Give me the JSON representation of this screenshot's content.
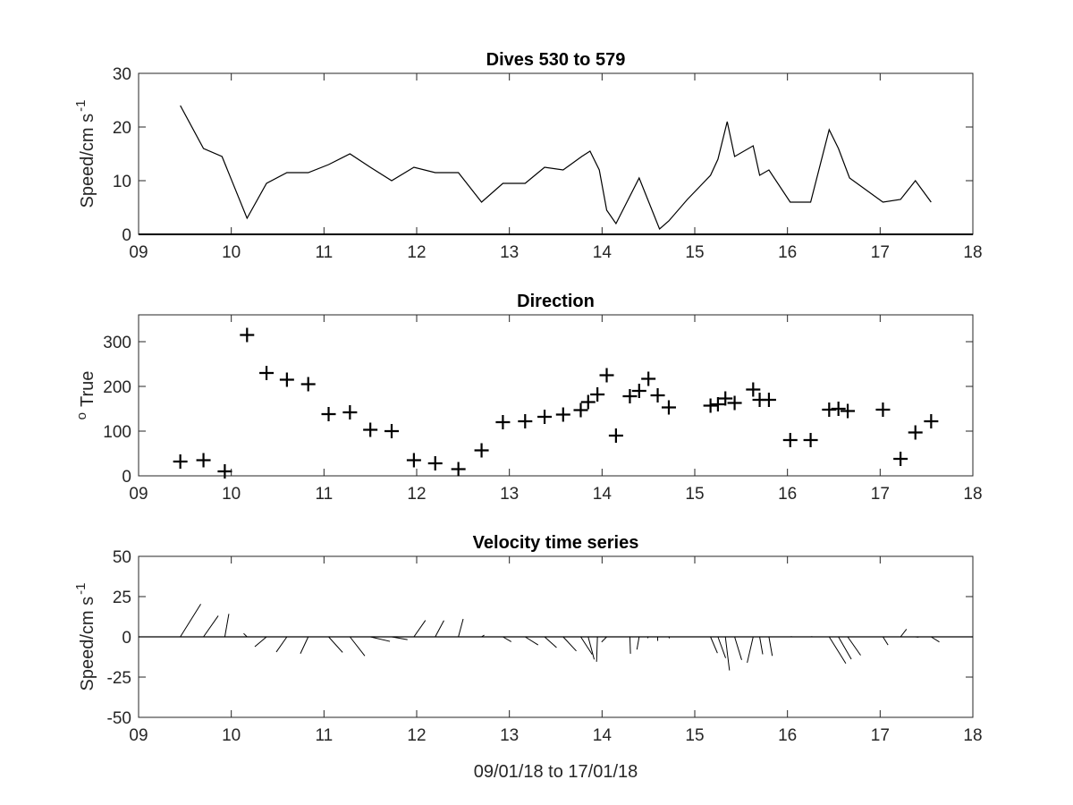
{
  "chart_data": [
    {
      "type": "line",
      "title": "Dives 530 to 579",
      "xlabel": "",
      "ylabel": "Speed/cm s",
      "ylabel_superscript": "-1",
      "xlim": [
        9,
        18
      ],
      "ylim": [
        0,
        30
      ],
      "xticks": [
        9,
        10,
        11,
        12,
        13,
        14,
        15,
        16,
        17,
        18
      ],
      "xtick_labels": [
        "09",
        "10",
        "11",
        "12",
        "13",
        "14",
        "15",
        "16",
        "17",
        "18"
      ],
      "yticks": [
        0,
        10,
        20,
        30
      ],
      "ytick_labels": [
        "0",
        "10",
        "20",
        "30"
      ],
      "grid": false,
      "series": [
        {
          "x": [
            9.45,
            9.7,
            9.9,
            10.17,
            10.38,
            10.6,
            10.83,
            11.05,
            11.28,
            11.5,
            11.73,
            11.97,
            12.2,
            12.45,
            12.7,
            12.93,
            13.17,
            13.38,
            13.58,
            13.78,
            13.87,
            13.97,
            14.05,
            14.15,
            14.4,
            14.62,
            14.72,
            14.92,
            15.17,
            15.25,
            15.35,
            15.43,
            15.63,
            15.7,
            15.8,
            16.03,
            16.25,
            16.45,
            16.55,
            16.67,
            17.03,
            17.22,
            17.38,
            17.55
          ],
          "y": [
            24,
            16,
            14.5,
            3,
            9.5,
            11.5,
            11.5,
            13,
            15,
            12.5,
            10,
            12.5,
            11.5,
            11.5,
            6,
            9.5,
            9.5,
            12.5,
            12,
            14.5,
            15.5,
            12,
            4.5,
            2,
            10.5,
            1,
            2.5,
            6.5,
            11,
            14,
            21,
            14.5,
            16.5,
            11,
            12,
            6,
            6,
            19.5,
            16,
            10.5,
            6,
            6.5,
            10,
            6
          ]
        }
      ]
    },
    {
      "type": "scatter",
      "title": "Direction",
      "xlabel": "",
      "ylabel": "True",
      "ylabel_superscript": "o",
      "xlim": [
        9,
        18
      ],
      "ylim": [
        0,
        360
      ],
      "xticks": [
        9,
        10,
        11,
        12,
        13,
        14,
        15,
        16,
        17,
        18
      ],
      "xtick_labels": [
        "09",
        "10",
        "11",
        "12",
        "13",
        "14",
        "15",
        "16",
        "17",
        "18"
      ],
      "yticks": [
        0,
        100,
        200,
        300
      ],
      "ytick_labels": [
        "0",
        "100",
        "200",
        "300"
      ],
      "grid": false,
      "series": [
        {
          "x": [
            9.45,
            9.7,
            9.93,
            10.17,
            10.38,
            10.6,
            10.83,
            11.05,
            11.28,
            11.5,
            11.73,
            11.97,
            12.2,
            12.45,
            12.7,
            12.93,
            13.17,
            13.38,
            13.58,
            13.77,
            13.85,
            13.95,
            14.05,
            14.15,
            14.3,
            14.4,
            14.5,
            14.6,
            14.72,
            15.17,
            15.25,
            15.33,
            15.43,
            15.63,
            15.7,
            15.8,
            16.03,
            16.25,
            16.45,
            16.55,
            16.65,
            17.03,
            17.22,
            17.38,
            17.55
          ],
          "y": [
            32,
            35,
            10,
            315,
            230,
            215,
            205,
            138,
            142,
            103,
            100,
            35,
            28,
            15,
            57,
            120,
            122,
            132,
            137,
            147,
            165,
            182,
            225,
            90,
            178,
            190,
            217,
            180,
            153,
            157,
            160,
            173,
            163,
            193,
            170,
            170,
            80,
            80,
            148,
            150,
            145,
            148,
            38,
            97,
            122
          ]
        }
      ]
    },
    {
      "type": "quiver",
      "title": "Velocity time series",
      "xlabel": "09/01/18 to 17/01/18",
      "ylabel": "Speed/cm s",
      "ylabel_superscript": "-1",
      "xlim": [
        9,
        18
      ],
      "ylim": [
        -50,
        50
      ],
      "xticks": [
        9,
        10,
        11,
        12,
        13,
        14,
        15,
        16,
        17,
        18
      ],
      "xtick_labels": [
        "09",
        "10",
        "11",
        "12",
        "13",
        "14",
        "15",
        "16",
        "17",
        "18"
      ],
      "yticks": [
        -50,
        -25,
        0,
        25,
        50
      ],
      "ytick_labels": [
        "-50",
        "-25",
        "0",
        "25",
        "50"
      ],
      "grid": false,
      "series": [
        {
          "x": [
            9.45,
            9.7,
            9.93,
            10.17,
            10.38,
            10.6,
            10.83,
            11.05,
            11.28,
            11.5,
            11.73,
            11.97,
            12.2,
            12.45,
            12.7,
            12.93,
            13.17,
            13.38,
            13.58,
            13.77,
            13.85,
            13.95,
            14.05,
            14.15,
            14.3,
            14.4,
            14.5,
            14.6,
            14.72,
            15.17,
            15.25,
            15.33,
            15.43,
            15.63,
            15.7,
            15.8,
            16.03,
            16.25,
            16.45,
            16.55,
            16.65,
            17.03,
            17.22,
            17.38,
            17.55
          ],
          "speed": [
            24,
            16,
            14.5,
            3,
            9.5,
            11.5,
            11.5,
            13,
            15,
            12.5,
            10,
            12.5,
            11.5,
            11.5,
            2,
            6,
            9.5,
            10,
            12,
            13,
            14.5,
            15.5,
            4.5,
            2,
            10.5,
            8,
            1,
            2.5,
            1,
            11,
            14,
            21,
            15,
            16.5,
            11,
            12,
            1,
            1,
            19.5,
            16,
            14,
            6,
            6,
            2,
            6
          ],
          "direction_deg": [
            32,
            35,
            10,
            315,
            230,
            215,
            205,
            138,
            142,
            103,
            100,
            35,
            28,
            15,
            57,
            120,
            122,
            132,
            137,
            147,
            165,
            182,
            225,
            90,
            178,
            190,
            217,
            180,
            153,
            157,
            160,
            173,
            163,
            193,
            170,
            170,
            80,
            80,
            148,
            150,
            145,
            148,
            38,
            97,
            122
          ]
        }
      ]
    }
  ]
}
